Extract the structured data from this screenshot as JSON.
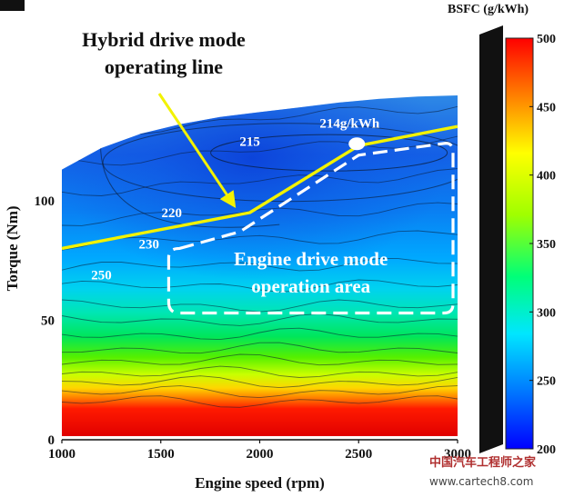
{
  "chart_data": {
    "type": "heatmap",
    "title": "",
    "xlabel": "Engine speed (rpm)",
    "ylabel": "Torque (Nm)",
    "xlim": [
      1000,
      3000
    ],
    "ylim": [
      0,
      130
    ],
    "x_ticks": [
      1000,
      1500,
      2000,
      2500,
      3000
    ],
    "y_ticks": [
      0,
      50,
      100
    ],
    "x_tick_labels": [
      "1000",
      "1500",
      "2000",
      "2500",
      "3000"
    ],
    "y_tick_labels": [
      "0",
      "50",
      "100"
    ],
    "colorbar": {
      "title": "BSFC (g/kWh)",
      "min": 200,
      "max": 500,
      "ticks": [
        200,
        250,
        300,
        350,
        400,
        450,
        500
      ],
      "tick_labels": [
        "200",
        "250",
        "300",
        "350",
        "400",
        "450",
        "500"
      ],
      "colors": [
        "#0000ff",
        "#0078ff",
        "#00e6ff",
        "#00ff78",
        "#a0ff00",
        "#ffff00",
        "#ff8000",
        "#ff0000"
      ]
    },
    "max_torque_curve": {
      "x": [
        1000,
        1200,
        1400,
        1600,
        1800,
        2000,
        2200,
        2400,
        2600,
        2800,
        3000
      ],
      "y": [
        113,
        122,
        128,
        132,
        135,
        137,
        139,
        141,
        142.5,
        143.5,
        144
      ]
    },
    "contour_labels": [
      {
        "text": "215",
        "x": 1950,
        "y": 123
      },
      {
        "text": "220",
        "x": 1555,
        "y": 93
      },
      {
        "text": "230",
        "x": 1440,
        "y": 80
      },
      {
        "text": "250",
        "x": 1200,
        "y": 67
      }
    ],
    "series": [
      {
        "name": "Hybrid drive mode operating line",
        "type": "line",
        "x": [
          1000,
          1950,
          2500,
          3000
        ],
        "y": [
          80,
          95,
          123,
          131
        ]
      }
    ],
    "annotations": [
      {
        "text_lines": [
          "Hybrid drive mode",
          "operating line"
        ],
        "type": "arrow-label"
      },
      {
        "text": "214g/kWh",
        "type": "point",
        "x": 2500,
        "y": 123
      },
      {
        "text_lines": [
          "Engine drive mode",
          "operation area"
        ],
        "type": "dashed-region",
        "x_range": [
          1540,
          3000
        ],
        "y_range": [
          53,
          124
        ]
      }
    ]
  },
  "watermark": {
    "line1": "中国汽车工程师之家",
    "line2": "www.cartech8.com"
  }
}
